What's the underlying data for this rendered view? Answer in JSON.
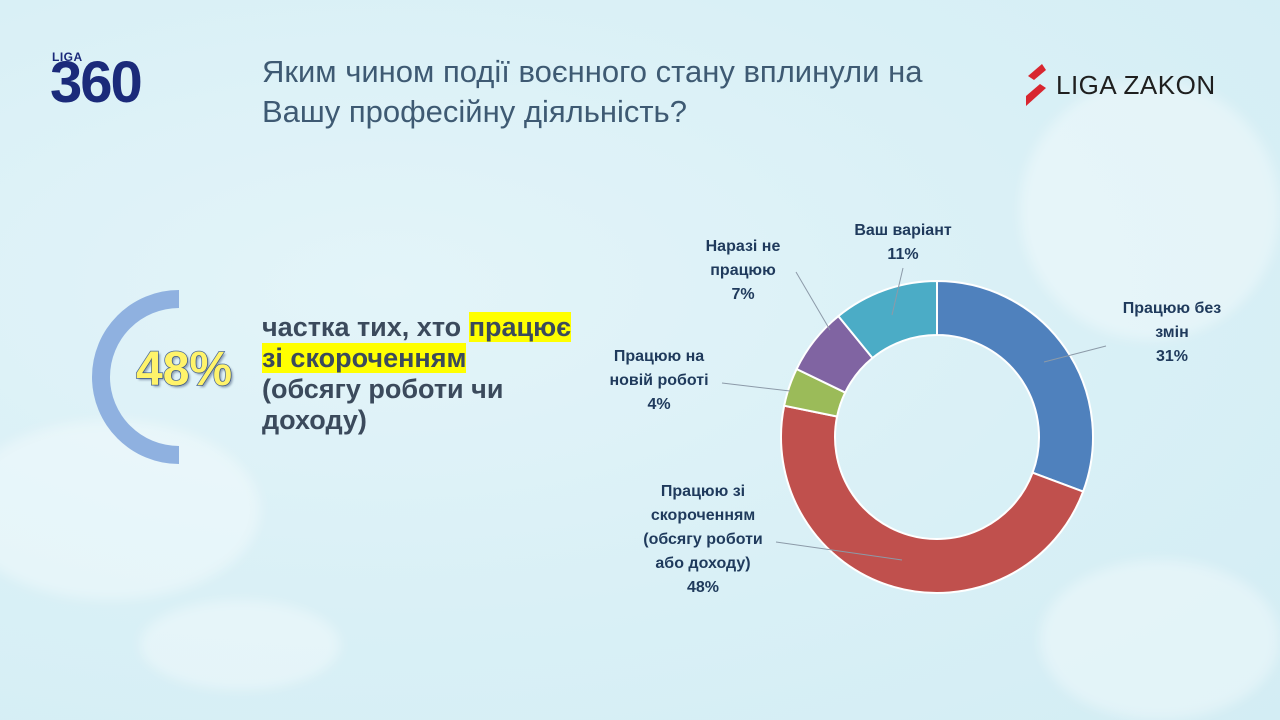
{
  "header": {
    "logo_small": "LIGA",
    "logo_big": "360",
    "title": "Яким чином події воєнного стану вплинули на Вашу професійну діяльність?",
    "brand": "LIGA ZAKON"
  },
  "highlight": {
    "value_label": "48%",
    "value": 48,
    "text_before": "частка тих, хто ",
    "text_highlight1": "працює",
    "text_highlight2": "зі скороченням",
    "text_after": "(обсягу роботи чи доходу)"
  },
  "chart_data": {
    "type": "pie",
    "donut": true,
    "series": [
      {
        "name": "Працюю без змін",
        "value": 31,
        "label_lines": [
          "Працюю без",
          "змін",
          "31%"
        ],
        "color": "#4f81bd"
      },
      {
        "name": "Працюю зі скороченням (обсягу роботи або доходу)",
        "value": 48,
        "label_lines": [
          "Працюю зі",
          "скороченням",
          "(обсягу роботи",
          "або доходу)",
          "48%"
        ],
        "color": "#c0504d"
      },
      {
        "name": "Працюю на новій роботі",
        "value": 4,
        "label_lines": [
          "Працюю на",
          "новій роботі",
          "4%"
        ],
        "color": "#9bbb59"
      },
      {
        "name": "Наразі не працюю",
        "value": 7,
        "label_lines": [
          "Наразі не",
          "працюю",
          "7%"
        ],
        "color": "#8064a2"
      },
      {
        "name": "Ваш варіант",
        "value": 11,
        "label_lines": [
          "Ваш варіант",
          "11%"
        ],
        "color": "#4bacc6"
      }
    ]
  }
}
